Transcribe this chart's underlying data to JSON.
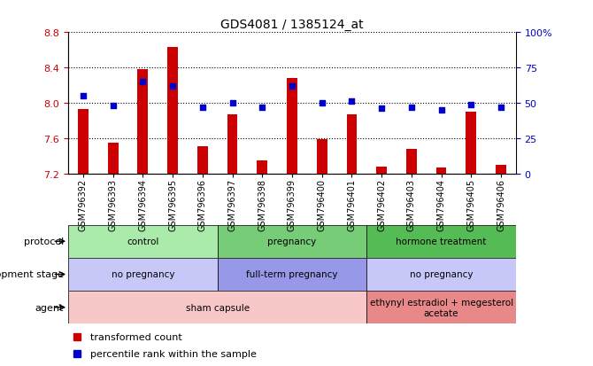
{
  "title": "GDS4081 / 1385124_at",
  "samples": [
    "GSM796392",
    "GSM796393",
    "GSM796394",
    "GSM796395",
    "GSM796396",
    "GSM796397",
    "GSM796398",
    "GSM796399",
    "GSM796400",
    "GSM796401",
    "GSM796402",
    "GSM796403",
    "GSM796404",
    "GSM796405",
    "GSM796406"
  ],
  "transformed_count": [
    7.93,
    7.55,
    8.38,
    8.63,
    7.51,
    7.87,
    7.35,
    8.28,
    7.59,
    7.87,
    7.28,
    7.48,
    7.27,
    7.9,
    7.3
  ],
  "percentile_rank": [
    55,
    48,
    65,
    62,
    47,
    50,
    47,
    62,
    50,
    51,
    46,
    47,
    45,
    49,
    47
  ],
  "ylim_left": [
    7.2,
    8.8
  ],
  "ylim_right": [
    0,
    100
  ],
  "yticks_left": [
    7.2,
    7.6,
    8.0,
    8.4,
    8.8
  ],
  "yticks_right": [
    0,
    25,
    50,
    75,
    100
  ],
  "protocol_groups": [
    {
      "label": "control",
      "start": 0,
      "end": 4,
      "color": "#aaeaaa"
    },
    {
      "label": "pregnancy",
      "start": 5,
      "end": 9,
      "color": "#77cc77"
    },
    {
      "label": "hormone treatment",
      "start": 10,
      "end": 14,
      "color": "#55bb55"
    }
  ],
  "dev_stage_groups": [
    {
      "label": "no pregnancy",
      "start": 0,
      "end": 4,
      "color": "#c8c8f8"
    },
    {
      "label": "full-term pregnancy",
      "start": 5,
      "end": 9,
      "color": "#9898e8"
    },
    {
      "label": "no pregnancy",
      "start": 10,
      "end": 14,
      "color": "#c8c8f8"
    }
  ],
  "agent_groups": [
    {
      "label": "sham capsule",
      "start": 0,
      "end": 9,
      "color": "#f8c8c8"
    },
    {
      "label": "ethynyl estradiol + megesterol\nacetate",
      "start": 10,
      "end": 14,
      "color": "#e88888"
    }
  ],
  "bar_color": "#cc0000",
  "dot_color": "#0000cc",
  "bg_color": "#cccccc",
  "plot_bg": "#ffffff",
  "left_label_color": "#cc0000",
  "right_label_color": "#0000cc",
  "legend_items": [
    {
      "label": "transformed count",
      "color": "#cc0000"
    },
    {
      "label": "percentile rank within the sample",
      "color": "#0000cc"
    }
  ]
}
